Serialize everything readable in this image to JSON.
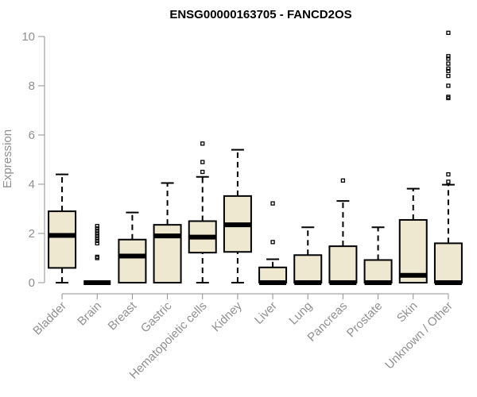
{
  "chart_data": {
    "type": "boxplot",
    "title": "ENSG00000163705 - FANCD2OS",
    "xlabel": "",
    "ylabel": "Expression",
    "ylim": [
      0,
      10.3
    ],
    "yticks": [
      0,
      2,
      4,
      6,
      8,
      10
    ],
    "grid": false,
    "legend": "none",
    "box_color": "#EEE8D0",
    "categories": [
      "Bladder",
      "Brain",
      "Breast",
      "Gastric",
      "Hematopoietic cells",
      "Kidney",
      "Liver",
      "Lung",
      "Pancreas",
      "Prostate",
      "Skin",
      "Unknown / Other"
    ],
    "boxes": [
      {
        "min": 0,
        "q1": 0.6,
        "median": 1.92,
        "q3": 2.9,
        "max": 4.4,
        "outliers": []
      },
      {
        "min": 0,
        "q1": 0,
        "median": 0,
        "q3": 0,
        "max": 0,
        "outliers": [
          1.0,
          1.05,
          1.6,
          1.7,
          1.8,
          1.9,
          2.0,
          2.1,
          2.2,
          2.3
        ]
      },
      {
        "min": 0,
        "q1": 0,
        "median": 1.08,
        "q3": 1.75,
        "max": 2.85,
        "outliers": []
      },
      {
        "min": 0,
        "q1": 0,
        "median": 1.9,
        "q3": 2.35,
        "max": 4.05,
        "outliers": []
      },
      {
        "min": 0,
        "q1": 1.22,
        "median": 1.85,
        "q3": 2.5,
        "max": 4.3,
        "outliers": [
          4.5,
          4.9,
          5.65
        ]
      },
      {
        "min": 0,
        "q1": 1.25,
        "median": 2.35,
        "q3": 3.52,
        "max": 5.4,
        "outliers": []
      },
      {
        "min": 0,
        "q1": 0,
        "median": 0,
        "q3": 0.62,
        "max": 0.95,
        "outliers": [
          1.65,
          3.22
        ]
      },
      {
        "min": 0,
        "q1": 0,
        "median": 0,
        "q3": 1.12,
        "max": 2.25,
        "outliers": []
      },
      {
        "min": 0,
        "q1": 0,
        "median": 0,
        "q3": 1.48,
        "max": 3.32,
        "outliers": [
          4.15
        ]
      },
      {
        "min": 0,
        "q1": 0,
        "median": 0,
        "q3": 0.92,
        "max": 2.25,
        "outliers": []
      },
      {
        "min": 0,
        "q1": 0,
        "median": 0.3,
        "q3": 2.55,
        "max": 3.82,
        "outliers": []
      },
      {
        "min": 0,
        "q1": 0,
        "median": 0,
        "q3": 1.6,
        "max": 3.98,
        "outliers": [
          4.1,
          4.4,
          7.5,
          7.55,
          8.0,
          8.4,
          8.6,
          8.7,
          8.9,
          9.1,
          9.2,
          10.15
        ]
      }
    ]
  }
}
